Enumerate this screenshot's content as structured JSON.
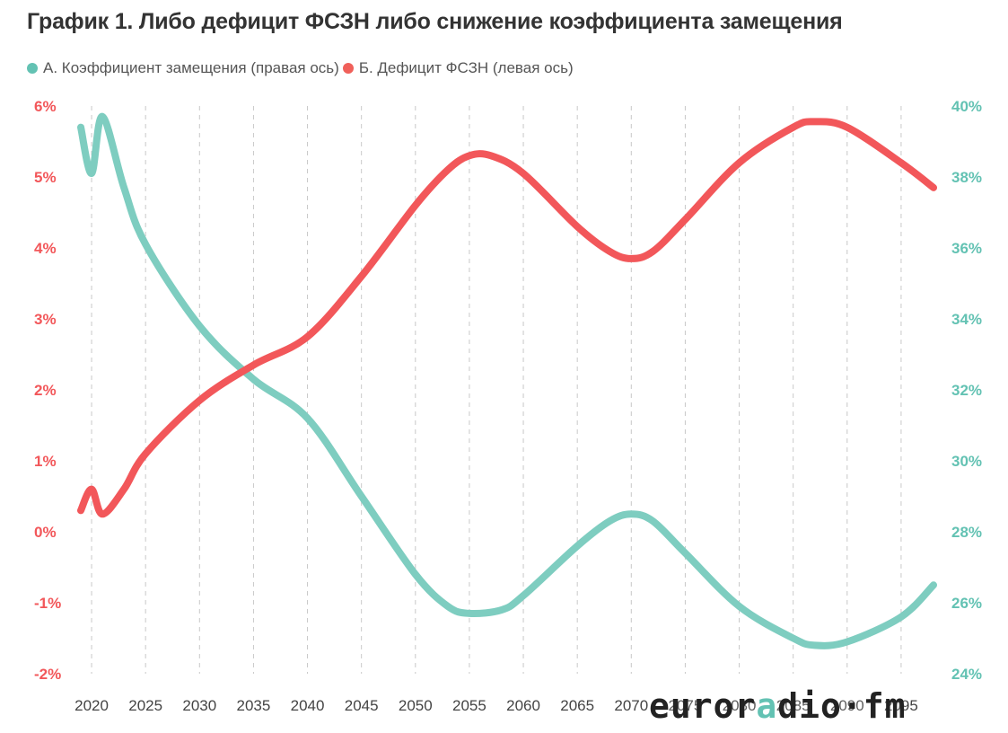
{
  "title": "График 1. Либо дефицит ФСЗН либо снижение коэффициента замещения",
  "watermark": {
    "part1": "euror",
    "part2": "a",
    "part3": "dio·fm"
  },
  "colors": {
    "left": "#f2575a",
    "right": "#7ecdc0",
    "grid": "#c8c8c8",
    "tick": "#444444",
    "legend_left": "#f0605a",
    "legend_right": "#63c2b3"
  },
  "chart_data": {
    "type": "line",
    "title": "График 1. Либо дефицит ФСЗН либо снижение коэффициента замещения",
    "legend_position": "top-left",
    "grid": "vertical dashed",
    "x_ticks": [
      "2020",
      "2025",
      "2030",
      "2035",
      "2040",
      "2045",
      "2050",
      "2055",
      "2060",
      "2065",
      "2070",
      "2075",
      "2080",
      "2085",
      "2090",
      "2095"
    ],
    "xlim": [
      2018,
      2098
    ],
    "y_left": {
      "ticks": [
        "6%",
        "5%",
        "4%",
        "3%",
        "2%",
        "1%",
        "0%",
        "-1%",
        "-2%"
      ],
      "range": [
        -2,
        6
      ]
    },
    "y_right": {
      "ticks": [
        "40%",
        "38%",
        "36%",
        "34%",
        "32%",
        "30%",
        "28%",
        "26%",
        "24%"
      ],
      "range": [
        24,
        40
      ]
    },
    "series": [
      {
        "name": "А. Коэффициент замещения (правая ось)",
        "axis": "right",
        "points": [
          [
            2019,
            39.4
          ],
          [
            2020,
            38.1
          ],
          [
            2021,
            39.7
          ],
          [
            2023,
            37.7
          ],
          [
            2025,
            36.1
          ],
          [
            2030,
            33.8
          ],
          [
            2035,
            32.3
          ],
          [
            2040,
            31.2
          ],
          [
            2045,
            29.0
          ],
          [
            2050,
            26.8
          ],
          [
            2053,
            25.9
          ],
          [
            2055,
            25.7
          ],
          [
            2058,
            25.8
          ],
          [
            2060,
            26.2
          ],
          [
            2065,
            27.6
          ],
          [
            2068,
            28.3
          ],
          [
            2070,
            28.5
          ],
          [
            2072,
            28.3
          ],
          [
            2075,
            27.4
          ],
          [
            2080,
            25.9
          ],
          [
            2085,
            25.0
          ],
          [
            2087,
            24.8
          ],
          [
            2090,
            24.9
          ],
          [
            2095,
            25.6
          ],
          [
            2098,
            26.5
          ]
        ]
      },
      {
        "name": "Б. Дефицит ФСЗН (левая ось)",
        "axis": "left",
        "points": [
          [
            2019,
            0.3
          ],
          [
            2020,
            0.6
          ],
          [
            2021,
            0.25
          ],
          [
            2023,
            0.6
          ],
          [
            2025,
            1.1
          ],
          [
            2030,
            1.85
          ],
          [
            2035,
            2.35
          ],
          [
            2040,
            2.75
          ],
          [
            2045,
            3.6
          ],
          [
            2050,
            4.6
          ],
          [
            2053,
            5.1
          ],
          [
            2055,
            5.3
          ],
          [
            2057,
            5.3
          ],
          [
            2060,
            5.05
          ],
          [
            2065,
            4.3
          ],
          [
            2068,
            3.95
          ],
          [
            2070,
            3.85
          ],
          [
            2072,
            3.95
          ],
          [
            2075,
            4.4
          ],
          [
            2080,
            5.2
          ],
          [
            2085,
            5.7
          ],
          [
            2087,
            5.78
          ],
          [
            2090,
            5.7
          ],
          [
            2095,
            5.2
          ],
          [
            2098,
            4.85
          ]
        ]
      }
    ]
  }
}
